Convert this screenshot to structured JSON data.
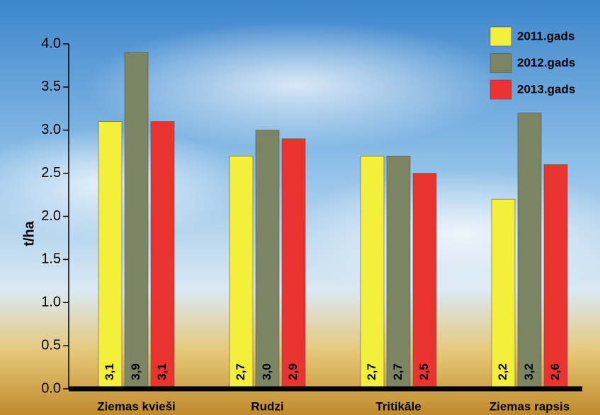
{
  "chart_data": {
    "type": "bar",
    "y_label": "t/ha",
    "categories": [
      "Ziemas kvieši",
      "Rudzi",
      "Tritikāle",
      "Ziemas rapsis"
    ],
    "series": [
      {
        "name": "2011.gads",
        "color": "#f4ef3a",
        "values": [
          3.1,
          2.7,
          2.7,
          2.2
        ],
        "value_labels": [
          "3,1",
          "2,7",
          "2,7",
          "2,2"
        ]
      },
      {
        "name": "2012.gads",
        "color": "#7b8563",
        "values": [
          3.9,
          3.0,
          2.7,
          3.2
        ],
        "value_labels": [
          "3,9",
          "3,0",
          "2,7",
          "3,2"
        ]
      },
      {
        "name": "2013.gads",
        "color": "#e8332f",
        "values": [
          3.1,
          2.9,
          2.5,
          2.6
        ],
        "value_labels": [
          "3,1",
          "2,9",
          "2,5",
          "2,6"
        ]
      }
    ],
    "ylim": [
      0,
      4
    ],
    "yticks": [
      {
        "value": 0,
        "label": "0.0"
      },
      {
        "value": 0.5,
        "label": "0.5"
      },
      {
        "value": 1,
        "label": "1.0"
      },
      {
        "value": 1.5,
        "label": "1.5"
      },
      {
        "value": 2,
        "label": "2.0"
      },
      {
        "value": 2.5,
        "label": "2.5"
      },
      {
        "value": 3,
        "label": "3.0"
      },
      {
        "value": 3.5,
        "label": "3.5"
      },
      {
        "value": 4,
        "label": "4.0"
      }
    ],
    "legend": "top-right"
  }
}
